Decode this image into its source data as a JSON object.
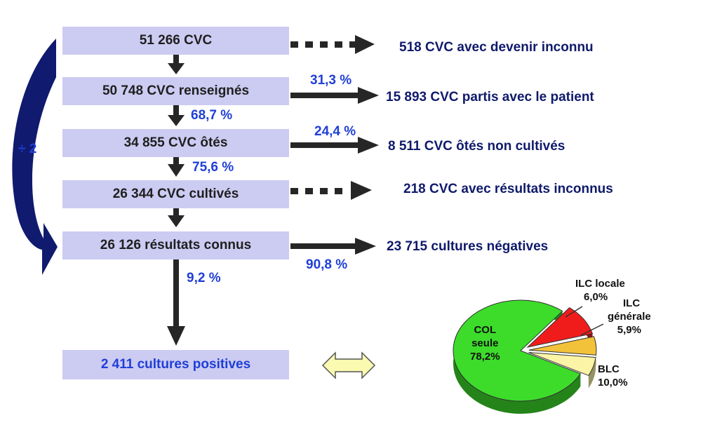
{
  "boxes": {
    "b1": "51 266 CVC",
    "b2": "50 748 CVC renseignés",
    "b3": "34 855 CVC ôtés",
    "b4": "26 344 CVC cultivés",
    "b5": "26 126 résultats connus",
    "b6": "2 411 cultures positives"
  },
  "side": {
    "s1": "518 CVC avec devenir inconnu",
    "s2": "15 893 CVC partis avec le patient",
    "s3": "8 511 CVC ôtés non cultivés",
    "s4": "218 CVC avec résultats inconnus",
    "s5": "23 715 cultures négatives"
  },
  "pct": {
    "right2": "31,3 %",
    "down2": "68,7 %",
    "right3": "24,4 %",
    "down3": "75,6 %",
    "right5": "90,8 %",
    "down5": "9,2 %"
  },
  "divide_label": "÷ 2",
  "pie": {
    "slices": [
      {
        "name": "COL seule",
        "value": 78.2,
        "color": "#3ddc2a"
      },
      {
        "name": "BLC",
        "value": 10.0,
        "color": "#f01c1c"
      },
      {
        "name": "ILC générale",
        "value": 5.9,
        "color": "#f2c23a"
      },
      {
        "name": "ILC locale",
        "value": 6.0,
        "color": "#fbf3a6"
      }
    ],
    "labels": {
      "col_l1": "COL",
      "col_l2": "seule",
      "col_l3": "78,2%",
      "ilc_locale_l1": "ILC locale",
      "ilc_locale_l2": "6,0%",
      "ilc_gen_l1": "ILC",
      "ilc_gen_l2": "générale",
      "ilc_gen_l3": "5,9%",
      "blc_l1": "BLC",
      "blc_l2": "10,0%"
    }
  },
  "colors": {
    "box_fill": "#cccbf2",
    "side_text": "#0f1a6b",
    "percent_text": "#1f3fd6",
    "arrow": "#262626",
    "double_arrow_fill": "#fafab0",
    "curved_arrow": "#101a6e"
  }
}
